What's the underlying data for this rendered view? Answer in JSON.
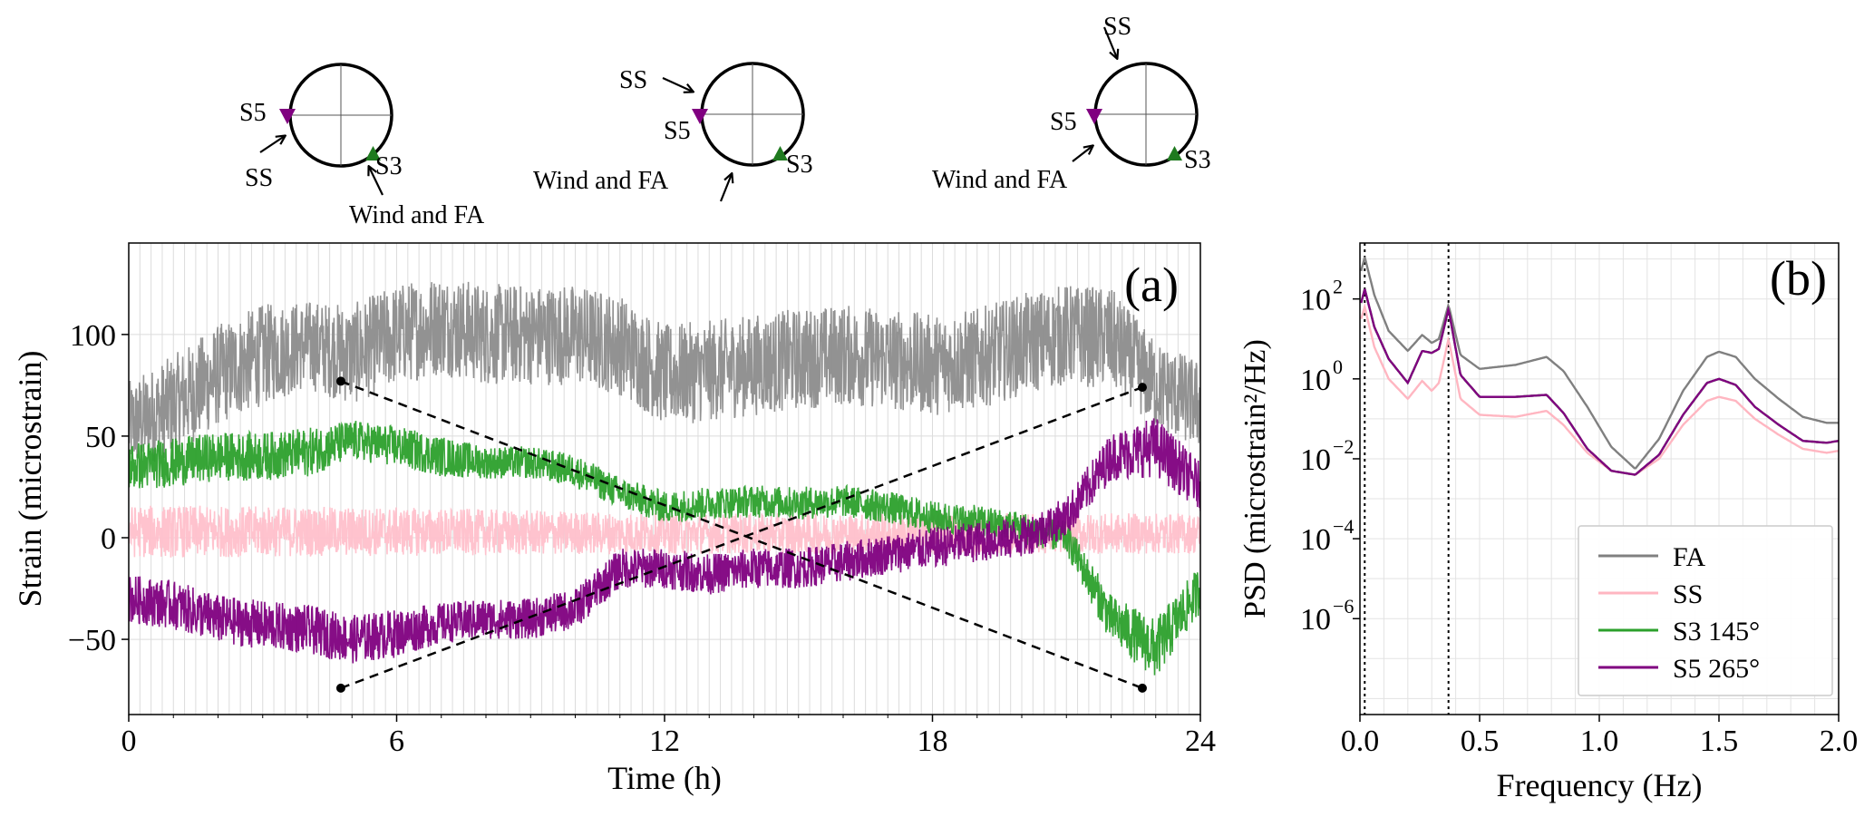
{
  "chart_data": [
    {
      "type": "line",
      "panel_label": "(a)",
      "xlabel": "Time (h)",
      "ylabel": "Strain (microstrain)",
      "xlim": [
        0,
        24
      ],
      "ylim": [
        -87,
        145
      ],
      "xticks": [
        0,
        6,
        12,
        18,
        24
      ],
      "xtick_labels": [
        "0",
        "6",
        "12",
        "18",
        "24"
      ],
      "yticks": [
        -50,
        0,
        50,
        100
      ],
      "ytick_labels": [
        "−50",
        "0",
        "50",
        "100"
      ],
      "grid": true,
      "series": [
        {
          "name": "FA",
          "color": "#8c8c8c",
          "x": [
            0,
            1,
            2,
            3,
            4,
            5,
            6,
            7,
            8,
            9,
            10,
            11,
            12,
            13,
            14,
            15,
            16,
            17,
            18,
            19,
            20,
            21,
            22,
            23,
            24
          ],
          "center": [
            55,
            65,
            80,
            90,
            95,
            90,
            100,
            105,
            100,
            100,
            100,
            95,
            80,
            82,
            85,
            88,
            90,
            88,
            85,
            88,
            95,
            100,
            98,
            75,
            65
          ],
          "band": [
            22,
            25,
            25,
            25,
            22,
            25,
            25,
            25,
            25,
            25,
            25,
            25,
            25,
            25,
            25,
            25,
            25,
            25,
            25,
            25,
            25,
            25,
            25,
            22,
            22
          ]
        },
        {
          "name": "SS",
          "color": "#ffc0cb",
          "x": [
            0,
            6,
            12,
            18,
            24
          ],
          "center": [
            3,
            3,
            2,
            2,
            2
          ],
          "band": [
            13,
            12,
            10,
            10,
            10
          ]
        },
        {
          "name": "S3 145°",
          "color": "#2ca02c",
          "x": [
            0,
            1,
            2,
            3,
            4,
            5,
            6,
            7,
            8,
            9,
            10,
            11,
            12,
            13,
            14,
            15,
            16,
            17,
            18,
            19,
            20,
            21,
            22,
            23,
            24
          ],
          "center": [
            35,
            37,
            40,
            40,
            42,
            48,
            45,
            40,
            37,
            37,
            33,
            22,
            15,
            17,
            18,
            17,
            18,
            15,
            10,
            8,
            5,
            0,
            -40,
            -55,
            -25
          ],
          "band": [
            12,
            12,
            12,
            12,
            12,
            10,
            10,
            10,
            8,
            8,
            8,
            8,
            8,
            8,
            8,
            8,
            8,
            8,
            8,
            8,
            8,
            8,
            12,
            15,
            12
          ]
        },
        {
          "name": "S5 265°",
          "color": "#800080",
          "x": [
            0,
            1,
            2,
            3,
            4,
            5,
            6,
            7,
            8,
            9,
            10,
            11,
            12,
            13,
            14,
            15,
            16,
            17,
            18,
            19,
            20,
            21,
            22,
            23,
            24
          ],
          "center": [
            -30,
            -33,
            -40,
            -43,
            -45,
            -50,
            -47,
            -42,
            -40,
            -40,
            -35,
            -15,
            -15,
            -18,
            -15,
            -15,
            -12,
            -8,
            -5,
            -2,
            0,
            10,
            40,
            45,
            25
          ],
          "band": [
            12,
            12,
            12,
            12,
            12,
            12,
            12,
            10,
            10,
            10,
            10,
            10,
            10,
            10,
            10,
            10,
            10,
            10,
            10,
            10,
            10,
            10,
            12,
            15,
            12
          ]
        }
      ],
      "dashed_lines": [
        {
          "from": [
            4.75,
            77
          ],
          "to": [
            22.7,
            -74
          ]
        },
        {
          "from": [
            4.75,
            -74
          ],
          "to": [
            22.7,
            74
          ]
        }
      ]
    },
    {
      "type": "line",
      "panel_label": "(b)",
      "xlabel": "Frequency (Hz)",
      "ylabel": "PSD (microstrain²/Hz)",
      "xlim": [
        0,
        2.0
      ],
      "ylim_log10": [
        -8.4,
        3.4
      ],
      "yscale": "log",
      "xticks": [
        0.0,
        0.5,
        1.0,
        1.5,
        2.0
      ],
      "xtick_labels": [
        "0.0",
        "0.5",
        "1.0",
        "1.5",
        "2.0"
      ],
      "yticks_log10": [
        -6,
        -4,
        -2,
        0,
        2
      ],
      "ytick_labels": [
        "10",
        "10",
        "10",
        "10",
        "10"
      ],
      "ytick_exponents": [
        "−6",
        "−4",
        "−2",
        "0",
        "2"
      ],
      "grid": true,
      "vlines": [
        0.02,
        0.37
      ],
      "legend_position": "lower-right",
      "series": [
        {
          "name": "FA",
          "color": "#808080",
          "x": [
            0.005,
            0.02,
            0.06,
            0.12,
            0.2,
            0.26,
            0.3,
            0.33,
            0.37,
            0.42,
            0.5,
            0.65,
            0.78,
            0.85,
            0.95,
            1.05,
            1.15,
            1.25,
            1.35,
            1.45,
            1.5,
            1.57,
            1.65,
            1.75,
            1.85,
            1.95,
            2.0
          ],
          "log10_psd": [
            2.7,
            3.05,
            2.1,
            1.2,
            0.7,
            1.1,
            0.9,
            1.0,
            1.85,
            0.6,
            0.25,
            0.35,
            0.55,
            0.2,
            -0.7,
            -1.7,
            -2.25,
            -1.5,
            -0.3,
            0.55,
            0.68,
            0.55,
            0.0,
            -0.5,
            -0.95,
            -1.1,
            -1.1
          ]
        },
        {
          "name": "SS",
          "color": "#ffb6c1",
          "x": [
            0.005,
            0.02,
            0.06,
            0.12,
            0.2,
            0.26,
            0.3,
            0.33,
            0.37,
            0.42,
            0.5,
            0.65,
            0.78,
            0.85,
            0.95,
            1.05,
            1.15,
            1.25,
            1.35,
            1.45,
            1.5,
            1.57,
            1.65,
            1.75,
            1.85,
            1.95,
            2.0
          ],
          "log10_psd": [
            1.5,
            1.8,
            0.8,
            0.0,
            -0.5,
            -0.05,
            -0.3,
            -0.1,
            1.0,
            -0.5,
            -0.9,
            -0.95,
            -0.8,
            -1.15,
            -1.85,
            -2.3,
            -2.4,
            -2.0,
            -1.15,
            -0.55,
            -0.45,
            -0.55,
            -1.0,
            -1.4,
            -1.75,
            -1.85,
            -1.8
          ]
        },
        {
          "name": "S3 145°",
          "color": "#2ca02c",
          "x": [
            0.005,
            0.02,
            0.06,
            0.12,
            0.2,
            0.26,
            0.3,
            0.33,
            0.37,
            0.42,
            0.5,
            0.65,
            0.78,
            0.85,
            0.95,
            1.05,
            1.15,
            1.25,
            1.35,
            1.45,
            1.5,
            1.57,
            1.65,
            1.75,
            1.85,
            1.95,
            2.0
          ],
          "log10_psd": [
            1.9,
            2.25,
            1.3,
            0.5,
            -0.1,
            0.7,
            0.65,
            0.75,
            1.75,
            0.1,
            -0.45,
            -0.45,
            -0.4,
            -0.85,
            -1.75,
            -2.3,
            -2.4,
            -1.9,
            -0.9,
            -0.1,
            0.0,
            -0.15,
            -0.7,
            -1.15,
            -1.55,
            -1.6,
            -1.55
          ]
        },
        {
          "name": "S5 265°",
          "color": "#800080",
          "x": [
            0.005,
            0.02,
            0.06,
            0.12,
            0.2,
            0.26,
            0.3,
            0.33,
            0.37,
            0.42,
            0.5,
            0.65,
            0.78,
            0.85,
            0.95,
            1.05,
            1.15,
            1.25,
            1.35,
            1.45,
            1.5,
            1.57,
            1.65,
            1.75,
            1.85,
            1.95,
            2.0
          ],
          "log10_psd": [
            1.9,
            2.25,
            1.3,
            0.5,
            -0.1,
            0.7,
            0.65,
            0.75,
            1.75,
            0.1,
            -0.45,
            -0.45,
            -0.4,
            -0.85,
            -1.75,
            -2.3,
            -2.4,
            -1.9,
            -0.9,
            -0.1,
            0.0,
            -0.15,
            -0.7,
            -1.15,
            -1.55,
            -1.6,
            -1.55
          ]
        }
      ]
    }
  ],
  "diagrams": [
    {
      "labels": {
        "s5": "S5",
        "s3": "S3",
        "ss": "SS",
        "wind": "Wind and FA"
      },
      "s5_color": "#800080",
      "s3_color": "#1f7a1f"
    },
    {
      "labels": {
        "s5": "S5",
        "s3": "S3",
        "ss": "SS",
        "wind": "Wind and FA"
      },
      "s5_color": "#800080",
      "s3_color": "#1f7a1f"
    },
    {
      "labels": {
        "s5": "S5",
        "s3": "S3",
        "ss": "SS",
        "wind": "Wind and FA"
      },
      "s5_color": "#800080",
      "s3_color": "#1f7a1f"
    }
  ]
}
